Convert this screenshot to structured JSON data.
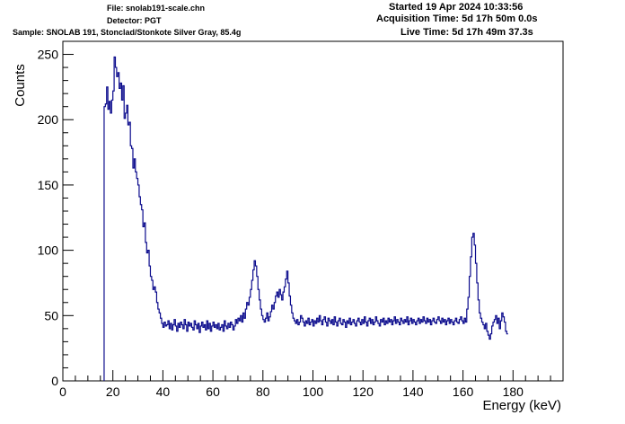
{
  "header": {
    "file": "File: snolab191-scale.chn",
    "detector": "Detector: PGT",
    "sample": "Sample: SNOLAB 191, Stonclad/Stonkote Silver Gray, 85.4g",
    "started": "Started 19 Apr 2024 10:33:56",
    "acquisition": "Acquisition Time: 5d 17h 50m 0.0s",
    "live": "Live Time: 5d 17h 49m 37.3s"
  },
  "chart_data": {
    "type": "line",
    "xlabel": "Energy (keV)",
    "ylabel": "Counts",
    "xlim": [
      0,
      200
    ],
    "ylim": [
      0,
      260
    ],
    "x_ticks": [
      "0",
      "20",
      "40",
      "60",
      "80",
      "100",
      "120",
      "140",
      "160",
      "180"
    ],
    "y_ticks": [
      "0",
      "50",
      "100",
      "150",
      "200",
      "250"
    ],
    "grid": false,
    "line_color": "#0a0a8c",
    "series": [
      {
        "bin_width_keV": 0.5,
        "x_start_keV": 16.5,
        "values": [
          210,
          212,
          225,
          208,
          214,
          205,
          215,
          222,
          248,
          240,
          233,
          236,
          224,
          228,
          215,
          226,
          201,
          205,
          211,
          196,
          198,
          180,
          178,
          163,
          170,
          160,
          155,
          150,
          141,
          135,
          131,
          118,
          121,
          106,
          98,
          100,
          88,
          80,
          77,
          70,
          72,
          68,
          60,
          55,
          52,
          48,
          44,
          41,
          45,
          42,
          43,
          46,
          40,
          44,
          39,
          43,
          47,
          42,
          38,
          44,
          41,
          45,
          43,
          40,
          47,
          43,
          38,
          45,
          42,
          44,
          41,
          39,
          46,
          43,
          40,
          44,
          37,
          42,
          45,
          41,
          43,
          39,
          46,
          40,
          44,
          38,
          42,
          45,
          41,
          43,
          40,
          44,
          39,
          41,
          43,
          38,
          46,
          42,
          40,
          44,
          41,
          45,
          43,
          39,
          42,
          47,
          44,
          48,
          46,
          50,
          45,
          52,
          48,
          55,
          60,
          58,
          64,
          70,
          77,
          85,
          92,
          88,
          80,
          70,
          62,
          55,
          50,
          47,
          45,
          48,
          52,
          46,
          49,
          53,
          58,
          55,
          60,
          65,
          68,
          64,
          70,
          66,
          62,
          68,
          72,
          78,
          84,
          75,
          65,
          58,
          52,
          48,
          46,
          44,
          47,
          43,
          45,
          50,
          48,
          45,
          42,
          46,
          44,
          48,
          43,
          45,
          47,
          42,
          46,
          44,
          48,
          45,
          50,
          46,
          43,
          47,
          49,
          45,
          42,
          48,
          46,
          44,
          47,
          43,
          49,
          45,
          42,
          46,
          48,
          44,
          43,
          47,
          45,
          41,
          46,
          44,
          48,
          43,
          45,
          47,
          44,
          42,
          46,
          48,
          45,
          43,
          47,
          44,
          49,
          45,
          42,
          46,
          48,
          44,
          47,
          43,
          45,
          49,
          46,
          44,
          42,
          47,
          45,
          48,
          43,
          46,
          44,
          48,
          45,
          47,
          43,
          46,
          49,
          44,
          47,
          45,
          43,
          48,
          46,
          44,
          47,
          45,
          49,
          43,
          46,
          48,
          44,
          47,
          45,
          43,
          46,
          48,
          44,
          47,
          45,
          49,
          46,
          44,
          48,
          45,
          47,
          43,
          46,
          48,
          45,
          44,
          47,
          49,
          46,
          44,
          48,
          45,
          47,
          43,
          46,
          48,
          44,
          47,
          45,
          43,
          46,
          48,
          45,
          44,
          47,
          49,
          46,
          44,
          48,
          45,
          55,
          64,
          80,
          95,
          110,
          113,
          104,
          90,
          75,
          62,
          52,
          48,
          45,
          43,
          40,
          44,
          38,
          35,
          32,
          36,
          42,
          45,
          47,
          50,
          44,
          48,
          40,
          46,
          52,
          49,
          45,
          38,
          36
        ]
      }
    ]
  }
}
